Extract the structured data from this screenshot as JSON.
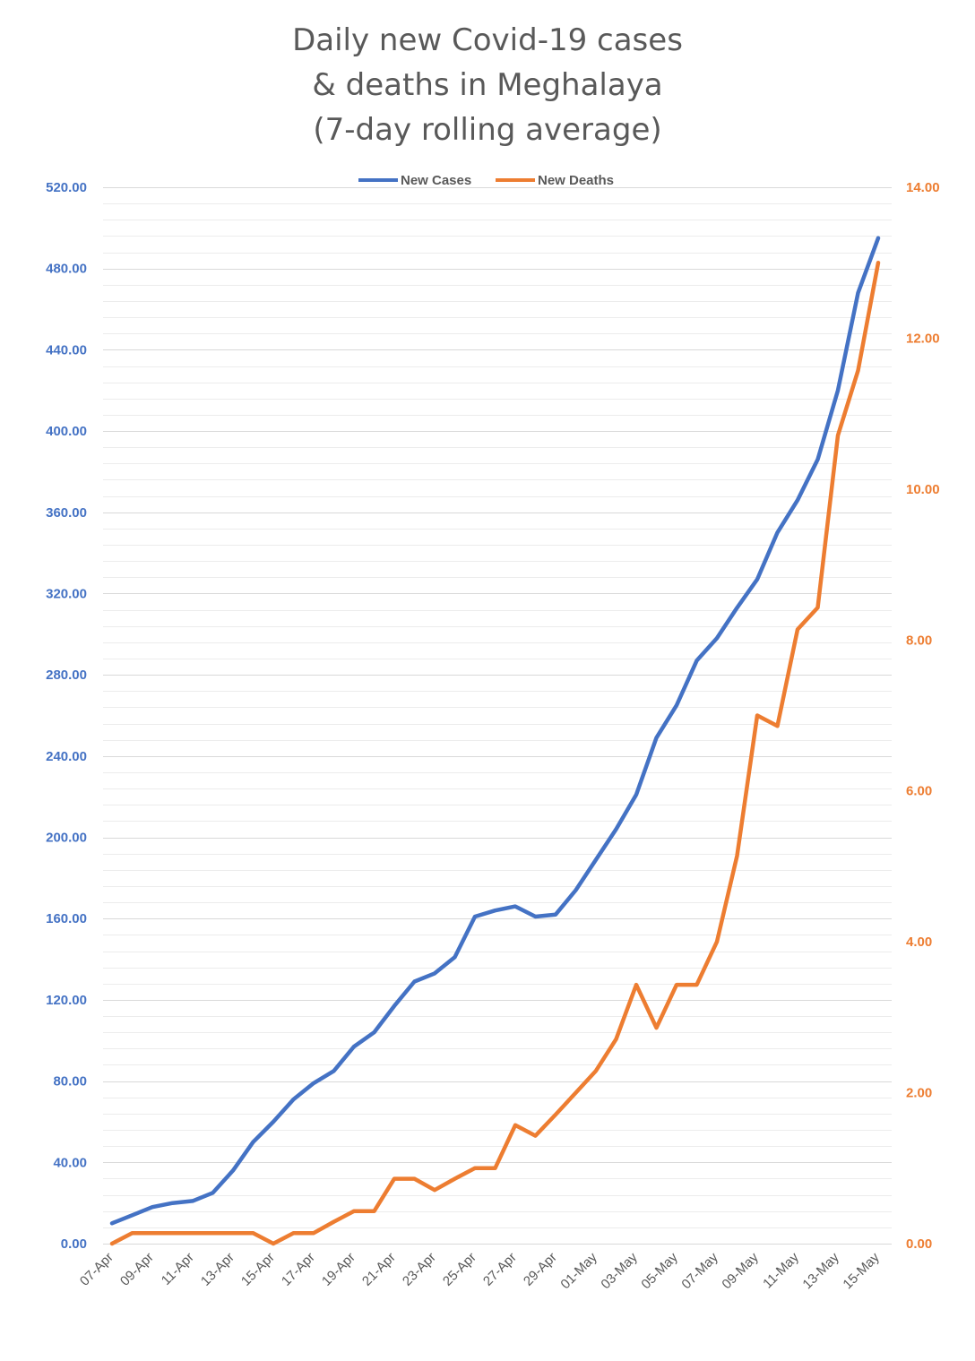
{
  "chart_data": {
    "type": "line",
    "title": [
      "Daily new Covid-19 cases",
      "& deaths in Meghalaya",
      "(7-day rolling average)"
    ],
    "categories": [
      "07-Apr",
      "08-Apr",
      "09-Apr",
      "10-Apr",
      "11-Apr",
      "12-Apr",
      "13-Apr",
      "14-Apr",
      "15-Apr",
      "16-Apr",
      "17-Apr",
      "18-Apr",
      "19-Apr",
      "20-Apr",
      "21-Apr",
      "22-Apr",
      "23-Apr",
      "24-Apr",
      "25-Apr",
      "26-Apr",
      "27-Apr",
      "28-Apr",
      "29-Apr",
      "30-Apr",
      "01-May",
      "02-May",
      "03-May",
      "04-May",
      "05-May",
      "06-May",
      "07-May",
      "08-May",
      "09-May",
      "10-May",
      "11-May",
      "12-May",
      "13-May",
      "14-May",
      "15-May"
    ],
    "x_tick_labels": [
      "07-Apr",
      "09-Apr",
      "11-Apr",
      "13-Apr",
      "15-Apr",
      "17-Apr",
      "19-Apr",
      "21-Apr",
      "23-Apr",
      "25-Apr",
      "27-Apr",
      "29-Apr",
      "01-May",
      "03-May",
      "05-May",
      "07-May",
      "09-May",
      "11-May",
      "13-May",
      "15-May"
    ],
    "series": [
      {
        "name": "New Cases",
        "axis": "left",
        "color": "#4472C4",
        "values": [
          10,
          14,
          18,
          20,
          21,
          25,
          36,
          50,
          60,
          71,
          79,
          85,
          97,
          104,
          117,
          129,
          133,
          141,
          161,
          164,
          166,
          161,
          162,
          174,
          189,
          204,
          221,
          249,
          265,
          287,
          298,
          313,
          327,
          350,
          366,
          386,
          420,
          468,
          495
        ]
      },
      {
        "name": "New Deaths",
        "axis": "right",
        "color": "#ED7D31",
        "values": [
          0,
          0.14,
          0.14,
          0.14,
          0.14,
          0.14,
          0.14,
          0.14,
          0,
          0.14,
          0.14,
          0.29,
          0.43,
          0.43,
          0.86,
          0.86,
          0.71,
          0.86,
          1.0,
          1.0,
          1.57,
          1.43,
          1.71,
          2.0,
          2.29,
          2.71,
          3.43,
          2.86,
          3.43,
          3.43,
          4.0,
          5.14,
          7.0,
          6.86,
          8.14,
          8.43,
          10.71,
          11.57,
          13.0
        ]
      }
    ],
    "y_left": {
      "min": 0,
      "max": 520,
      "major_step": 40,
      "ticks": [
        "0.00",
        "40.00",
        "80.00",
        "120.00",
        "160.00",
        "200.00",
        "240.00",
        "280.00",
        "320.00",
        "360.00",
        "400.00",
        "440.00",
        "480.00",
        "520.00"
      ]
    },
    "y_right": {
      "min": 0,
      "max": 14,
      "major_step": 2,
      "ticks": [
        "0.00",
        "2.00",
        "4.00",
        "6.00",
        "8.00",
        "10.00",
        "12.00",
        "14.00"
      ]
    },
    "grid": true,
    "legend_position": "top-center",
    "legend": [
      {
        "name": "New Cases",
        "color": "#4472C4"
      },
      {
        "name": "New Deaths",
        "color": "#ED7D31"
      }
    ]
  }
}
